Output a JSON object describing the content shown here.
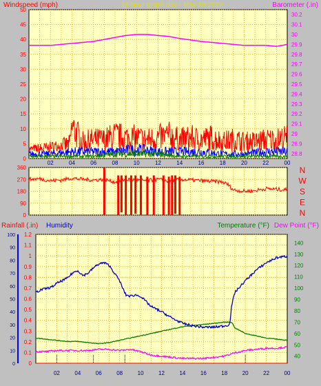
{
  "title": "24 hour graph day - May 18 2022",
  "colors": {
    "background": "#c0c0c0",
    "plot_bg": "#ffffc0",
    "title": "#e0e000",
    "wind_label": "#ff0000",
    "baro": "#ff00ff",
    "humidity": "#0000cc",
    "temp": "#008000",
    "dewpoint": "#ff00ff",
    "rain": "#ff0000",
    "grid": "#ff9900"
  },
  "chart_data": [
    {
      "type": "line",
      "panel": "wind-baro",
      "left_axis_label": "Windspeed (mph)",
      "right_axis_label": "Barometer (.in)",
      "left_ticks": [
        "0",
        "5",
        "10",
        "15",
        "20",
        "25",
        "30",
        "35",
        "40",
        "45",
        "50"
      ],
      "left_ylim": [
        0,
        50
      ],
      "right_ticks": [
        "28.8",
        "28.9",
        "29",
        "29.1",
        "29.2",
        "29.3",
        "29.4",
        "29.5",
        "29.6",
        "29.7",
        "29.8",
        "29.9",
        "30",
        "30.1",
        "30.2"
      ],
      "right_ylim": [
        28.75,
        30.25
      ],
      "x_ticks": [
        "02",
        "04",
        "06",
        "08",
        "10",
        "12",
        "14",
        "16",
        "18",
        "20",
        "22",
        "00"
      ],
      "x_range_hours": [
        0,
        24
      ],
      "series": [
        {
          "name": "Barometer",
          "axis": "right",
          "x": [
            0,
            2,
            4,
            6,
            8,
            9,
            10,
            11,
            12,
            13,
            14,
            16,
            18,
            20,
            22,
            23,
            24
          ],
          "values": [
            29.89,
            29.89,
            29.91,
            29.93,
            29.97,
            29.99,
            30.0,
            30.0,
            29.99,
            29.98,
            29.96,
            29.93,
            29.91,
            29.89,
            29.89,
            29.88,
            29.9
          ]
        },
        {
          "name": "Gust",
          "axis": "left",
          "x": [
            0,
            2,
            3,
            3.8,
            4,
            5,
            6,
            7,
            8,
            9,
            10,
            11,
            12,
            13,
            14,
            15,
            16,
            17,
            18,
            19,
            20,
            21,
            22,
            23,
            24
          ],
          "values": [
            4,
            5,
            6,
            7,
            15,
            8,
            9,
            9,
            11,
            10,
            10,
            9,
            10,
            11,
            9,
            10,
            9,
            10,
            8,
            9,
            8,
            8,
            9,
            9,
            10
          ]
        },
        {
          "name": "Windspeed",
          "axis": "left",
          "x": [
            0,
            2,
            4,
            6,
            8,
            10,
            12,
            14,
            16,
            18,
            20,
            22,
            24
          ],
          "values": [
            2,
            2,
            3,
            3,
            3,
            4,
            3,
            3,
            3,
            2,
            2,
            3,
            3
          ]
        },
        {
          "name": "Average",
          "axis": "left",
          "x": [
            0,
            2,
            4,
            6,
            8,
            10,
            12,
            14,
            16,
            18,
            20,
            22,
            24
          ],
          "values": [
            1,
            1,
            1,
            1,
            2,
            2,
            2,
            1,
            1,
            1,
            1,
            1,
            1
          ]
        }
      ]
    },
    {
      "type": "line",
      "panel": "wind-direction",
      "left_ticks": [
        "0",
        "90",
        "180",
        "270",
        "360"
      ],
      "ylim": [
        0,
        360
      ],
      "compass_labels": [
        "N",
        "W",
        "S",
        "E",
        "N"
      ],
      "x_range_hours": [
        0,
        24
      ],
      "series": [
        {
          "name": "Wind direction",
          "x": [
            0,
            1,
            2,
            3,
            4,
            5,
            6,
            7,
            8,
            9,
            10,
            11,
            12,
            13,
            14,
            15,
            16,
            17,
            18,
            18.5,
            19,
            20,
            21,
            22,
            23,
            24
          ],
          "values": [
            270,
            275,
            260,
            265,
            280,
            270,
            265,
            270,
            250,
            270,
            265,
            260,
            270,
            255,
            270,
            265,
            260,
            255,
            250,
            230,
            190,
            180,
            185,
            200,
            195,
            190
          ],
          "drops": [
            [
              7.0,
              360,
              0
            ],
            [
              8.3,
              300,
              0
            ],
            [
              8.6,
              300,
              20
            ],
            [
              9.0,
              300,
              0
            ],
            [
              9.5,
              300,
              0
            ],
            [
              9.9,
              300,
              10
            ],
            [
              10.4,
              300,
              0
            ],
            [
              11.0,
              290,
              0
            ],
            [
              11.6,
              300,
              0
            ],
            [
              12.5,
              300,
              0
            ],
            [
              13.0,
              290,
              0
            ],
            [
              13.3,
              300,
              0
            ],
            [
              13.6,
              300,
              10
            ],
            [
              14.0,
              290,
              0
            ]
          ]
        }
      ]
    },
    {
      "type": "line",
      "panel": "temp-humidity",
      "left_axis_label_1": "Rainfall (.in)",
      "left_axis_label_2": "Humidity",
      "right_axis_label_1": "Temperature (°F)",
      "right_axis_label_2": "Dew Point (°F)",
      "humidity_ticks": [
        "0",
        "10",
        "20",
        "30",
        "40",
        "50",
        "60",
        "70",
        "80",
        "90",
        "100"
      ],
      "humidity_ylim": [
        0,
        100
      ],
      "rain_ticks": [
        "0",
        "0.1",
        "0.2",
        "0.3",
        "0.4",
        "0.5",
        "0.6",
        "0.7",
        "0.8",
        "0.9",
        "1",
        "1.1",
        "1.2"
      ],
      "rain_ylim": [
        0,
        1.2
      ],
      "temp_ticks": [
        "40",
        "50",
        "60",
        "70",
        "80",
        "90",
        "100",
        "110",
        "120",
        "130",
        "140"
      ],
      "temp_ylim": [
        33.75,
        147.5
      ],
      "x_ticks": [
        "02",
        "04",
        "06",
        "08",
        "10",
        "12",
        "14",
        "16",
        "18",
        "20",
        "22",
        "00"
      ],
      "x_range_hours": [
        0,
        24
      ],
      "series": [
        {
          "name": "Humidity",
          "axis": "humidity",
          "x": [
            0,
            0.5,
            1,
            1.5,
            2,
            2.5,
            3,
            3.5,
            4,
            4.5,
            5,
            5.5,
            6,
            6.5,
            7,
            7.5,
            8,
            8.3,
            8.6,
            9,
            9.5,
            10,
            11,
            12,
            13,
            14,
            15,
            16,
            17,
            18,
            18.5,
            18.7,
            19,
            20,
            21,
            22,
            23,
            24
          ],
          "values": [
            55,
            57,
            58,
            59,
            62,
            64,
            66,
            70,
            72,
            68,
            70,
            74,
            77,
            78,
            76,
            70,
            64,
            58,
            53,
            52,
            53,
            52,
            44,
            40,
            35,
            31,
            29,
            28,
            28,
            29,
            30,
            45,
            55,
            64,
            72,
            78,
            82,
            83
          ]
        },
        {
          "name": "Temperature",
          "axis": "temp",
          "x": [
            0,
            1,
            2,
            3,
            4,
            5,
            6,
            7,
            8,
            9,
            10,
            11,
            12,
            13,
            14,
            15,
            16,
            17,
            18,
            18.7,
            19,
            20,
            21,
            22,
            23,
            24
          ],
          "values": [
            56,
            55,
            54,
            53,
            53,
            52,
            51,
            52,
            54,
            56,
            58,
            60,
            62,
            64,
            66,
            67,
            68,
            69,
            70,
            70,
            65,
            60,
            58,
            56,
            55,
            54
          ]
        },
        {
          "name": "Dew Point",
          "axis": "temp",
          "x": [
            0,
            1,
            2,
            3,
            4,
            5,
            6,
            7,
            8,
            9,
            10,
            11,
            12,
            13,
            14,
            15,
            16,
            17,
            18,
            19,
            20,
            21,
            22,
            23,
            24
          ],
          "values": [
            44,
            44,
            45,
            45,
            45,
            45,
            46,
            46,
            45,
            46,
            44,
            41,
            40,
            39,
            38,
            38,
            38,
            39,
            40,
            43,
            45,
            46,
            47,
            47,
            48
          ]
        },
        {
          "name": "Rainfall",
          "axis": "rain",
          "x": [
            0,
            24
          ],
          "values": [
            0,
            0
          ]
        }
      ]
    }
  ]
}
